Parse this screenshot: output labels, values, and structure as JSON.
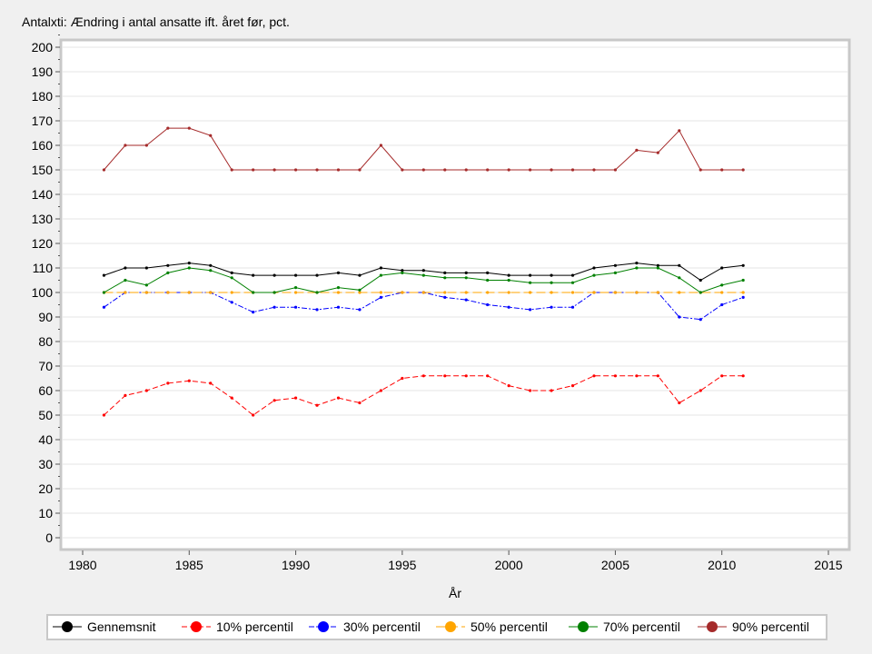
{
  "chart_data": {
    "type": "line",
    "title": "Antalxti: Ændring i antal ansatte ift. året før, pct.",
    "xlabel": "År",
    "ylabel": "",
    "xlim": [
      1978.9,
      2016
    ],
    "ylim": [
      -3,
      203
    ],
    "xticks": [
      1980,
      1985,
      1990,
      1995,
      2000,
      2005,
      2010,
      2015
    ],
    "yticks": [
      0,
      10,
      20,
      30,
      40,
      50,
      60,
      70,
      80,
      90,
      100,
      110,
      120,
      130,
      140,
      150,
      160,
      170,
      180,
      190,
      200
    ],
    "grid": true,
    "legend": "bottom",
    "x": [
      1981,
      1982,
      1983,
      1984,
      1985,
      1986,
      1987,
      1988,
      1989,
      1990,
      1991,
      1992,
      1993,
      1994,
      1995,
      1996,
      1997,
      1998,
      1999,
      2000,
      2001,
      2002,
      2003,
      2004,
      2005,
      2006,
      2007,
      2008,
      2009,
      2010,
      2011
    ],
    "series": [
      {
        "name": "Gennemsnit",
        "color": "#000000",
        "dash": "",
        "values": [
          107,
          110,
          110,
          111,
          112,
          111,
          108,
          107,
          107,
          107,
          107,
          108,
          107,
          110,
          109,
          109,
          108,
          108,
          108,
          107,
          107,
          107,
          107,
          110,
          111,
          112,
          111,
          111,
          105,
          110,
          111
        ]
      },
      {
        "name": "10% percentil",
        "color": "#ff0000",
        "dash": "6,3",
        "values": [
          50,
          58,
          60,
          63,
          64,
          63,
          57,
          50,
          56,
          57,
          54,
          57,
          55,
          60,
          65,
          66,
          66,
          66,
          66,
          62,
          60,
          60,
          62,
          66,
          66,
          66,
          66,
          55,
          60,
          66,
          66
        ]
      },
      {
        "name": "30% percentil",
        "color": "#0000ff",
        "dash": "6,2,2,2",
        "values": [
          94,
          100,
          100,
          100,
          100,
          100,
          96,
          92,
          94,
          94,
          93,
          94,
          93,
          98,
          100,
          100,
          98,
          97,
          95,
          94,
          93,
          94,
          94,
          100,
          100,
          100,
          100,
          90,
          89,
          95,
          98
        ]
      },
      {
        "name": "50% percentil",
        "color": "#ffa500",
        "dash": "10,4",
        "values": [
          100,
          100,
          100,
          100,
          100,
          100,
          100,
          100,
          100,
          100,
          100,
          100,
          100,
          100,
          100,
          100,
          100,
          100,
          100,
          100,
          100,
          100,
          100,
          100,
          100,
          100,
          100,
          100,
          100,
          100,
          100
        ]
      },
      {
        "name": "70% percentil",
        "color": "#008000",
        "dash": "",
        "values": [
          100,
          105,
          103,
          108,
          110,
          109,
          106,
          100,
          100,
          102,
          100,
          102,
          101,
          107,
          108,
          107,
          106,
          106,
          105,
          105,
          104,
          104,
          104,
          107,
          108,
          110,
          110,
          106,
          100,
          103,
          105
        ]
      },
      {
        "name": "90% percentil",
        "color": "#a52a2a",
        "dash": "",
        "values": [
          150,
          160,
          160,
          167,
          167,
          164,
          150,
          150,
          150,
          150,
          150,
          150,
          150,
          160,
          150,
          150,
          150,
          150,
          150,
          150,
          150,
          150,
          150,
          150,
          150,
          158,
          157,
          166,
          150,
          150,
          150
        ]
      }
    ]
  }
}
